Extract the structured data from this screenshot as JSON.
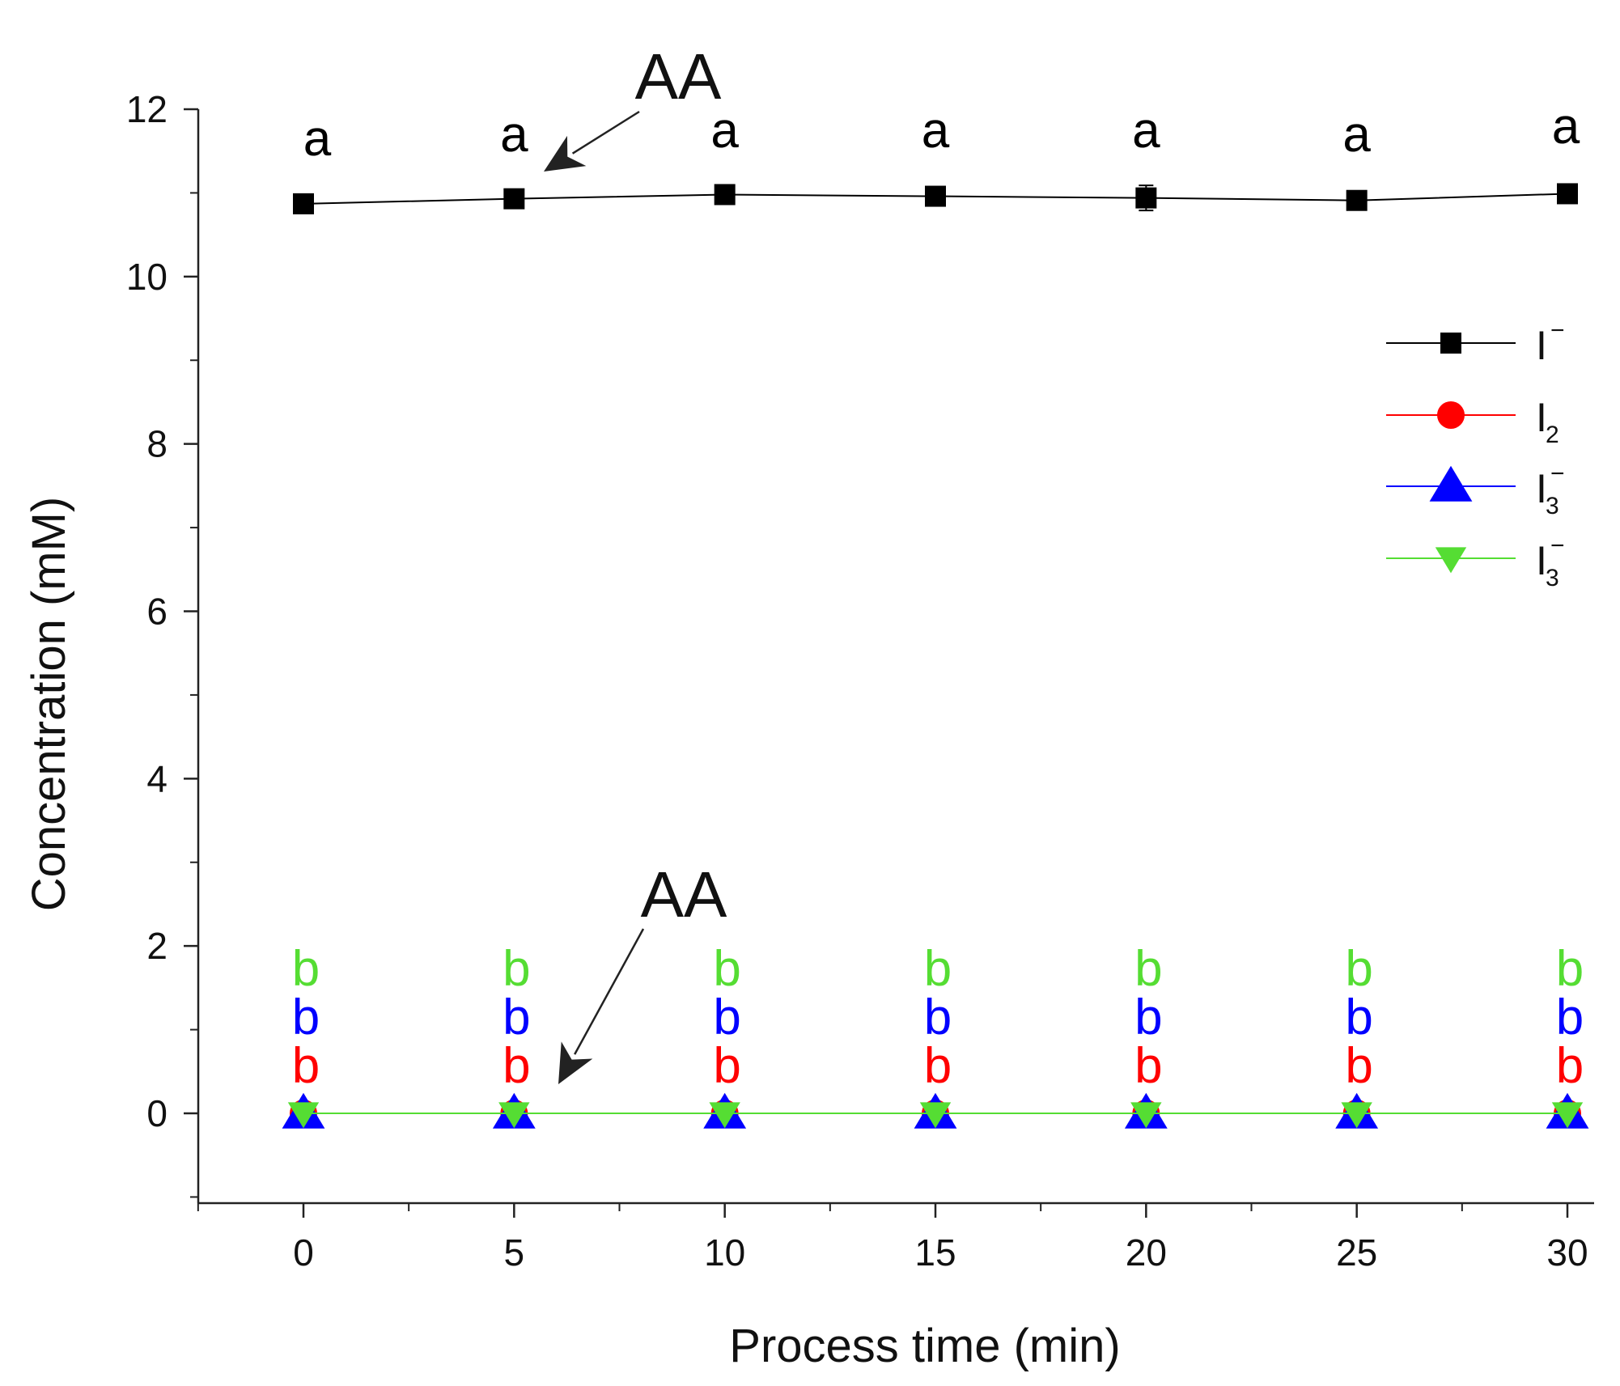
{
  "chart_data": {
    "type": "line",
    "xlabel": "Process time (min)",
    "ylabel": "Concentration (mM)",
    "xlim": [
      -2.5,
      30
    ],
    "ylim": [
      -1,
      12
    ],
    "xticks": [
      0,
      5,
      10,
      15,
      20,
      25,
      30
    ],
    "yticks": [
      0,
      2,
      4,
      6,
      8,
      10,
      12
    ],
    "x": [
      0,
      5,
      10,
      15,
      20,
      25,
      30
    ],
    "series": [
      {
        "name": "I",
        "superscript": "−",
        "subscript": "",
        "color": "#000000",
        "marker": "square",
        "values": [
          10.87,
          10.93,
          10.98,
          10.96,
          10.94,
          10.91,
          10.99
        ],
        "errors": [
          0,
          0,
          0,
          0,
          0.15,
          0,
          0
        ],
        "letters": [
          "a",
          "a",
          "a",
          "a",
          "a",
          "a",
          "a"
        ]
      },
      {
        "name": "I",
        "superscript": "",
        "subscript": "2",
        "color": "#ff0000",
        "marker": "circle",
        "values": [
          0,
          0,
          0,
          0,
          0,
          0,
          0
        ],
        "letters": [
          "b",
          "b",
          "b",
          "b",
          "b",
          "b",
          "b"
        ]
      },
      {
        "name": "I",
        "superscript": "−",
        "subscript": "3",
        "color": "#0000ff",
        "marker": "triangle-up",
        "values": [
          0,
          0,
          0,
          0,
          0,
          0,
          0
        ],
        "letters": [
          "b",
          "b",
          "b",
          "b",
          "b",
          "b",
          "b"
        ]
      },
      {
        "name": "I",
        "superscript": "−",
        "subscript": "3",
        "color": "#55dd33",
        "marker": "triangle-down",
        "values": [
          0,
          0,
          0,
          0,
          0,
          0,
          0
        ],
        "letters": [
          "b",
          "b",
          "b",
          "b",
          "b",
          "b",
          "b"
        ]
      }
    ],
    "annotations": [
      {
        "text": "AA",
        "target_series": 0,
        "target_x": 5
      },
      {
        "text": "AA",
        "target_series": 3,
        "target_x": 5
      }
    ],
    "legend_position": "right"
  }
}
